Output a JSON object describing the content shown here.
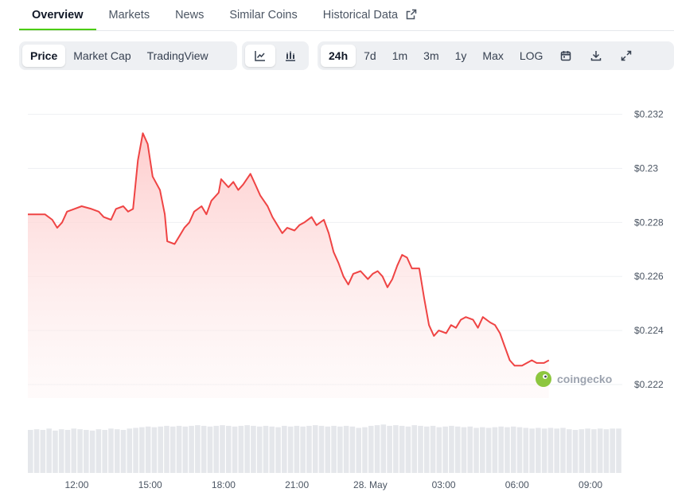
{
  "tabs": [
    {
      "label": "Overview",
      "active": true
    },
    {
      "label": "Markets",
      "active": false
    },
    {
      "label": "News",
      "active": false
    },
    {
      "label": "Similar Coins",
      "active": false
    },
    {
      "label": "Historical Data",
      "active": false
    }
  ],
  "toolbar": {
    "chart_modes": [
      "Price",
      "Market Cap",
      "TradingView"
    ],
    "active_mode": "Price",
    "chart_styles": [
      "line-chart-icon",
      "candlestick-icon"
    ],
    "active_style": "line-chart-icon",
    "ranges": [
      "24h",
      "7d",
      "1m",
      "3m",
      "1y",
      "Max",
      "LOG"
    ],
    "active_range": "24h",
    "actions": [
      "calendar-icon",
      "download-icon",
      "fullscreen-icon"
    ]
  },
  "watermark": "coingecko",
  "colors": {
    "line": "#ef4444",
    "area_top": "#fecaca",
    "volume": "#e5e7eb",
    "accent": "#4bcc00"
  },
  "chart_data": {
    "type": "area",
    "yprefix": "$",
    "ylim": [
      0.2215,
      0.2324
    ],
    "yticks": [
      "0.222",
      "0.224",
      "0.226",
      "0.228",
      "0.23",
      "0.232"
    ],
    "xlim": [
      10,
      34.3
    ],
    "xticks": [
      {
        "h": 12,
        "label": "12:00"
      },
      {
        "h": 15,
        "label": "15:00"
      },
      {
        "h": 18,
        "label": "18:00"
      },
      {
        "h": 21,
        "label": "21:00"
      },
      {
        "h": 24,
        "label": "28. May"
      },
      {
        "h": 27,
        "label": "03:00"
      },
      {
        "h": 30,
        "label": "06:00"
      },
      {
        "h": 33,
        "label": "09:00"
      }
    ],
    "grid": true,
    "legend": "none",
    "price": [
      [
        10.0,
        0.2283
      ],
      [
        10.4,
        0.2283
      ],
      [
        10.7,
        0.2283
      ],
      [
        11.0,
        0.2281
      ],
      [
        11.2,
        0.2278
      ],
      [
        11.4,
        0.228
      ],
      [
        11.6,
        0.2284
      ],
      [
        11.9,
        0.2285
      ],
      [
        12.2,
        0.2286
      ],
      [
        12.6,
        0.2285
      ],
      [
        12.9,
        0.2284
      ],
      [
        13.1,
        0.2282
      ],
      [
        13.4,
        0.2281
      ],
      [
        13.6,
        0.2285
      ],
      [
        13.9,
        0.2286
      ],
      [
        14.1,
        0.2284
      ],
      [
        14.3,
        0.2285
      ],
      [
        14.5,
        0.2303
      ],
      [
        14.7,
        0.2313
      ],
      [
        14.9,
        0.2309
      ],
      [
        15.1,
        0.2297
      ],
      [
        15.4,
        0.2292
      ],
      [
        15.6,
        0.2283
      ],
      [
        15.7,
        0.2273
      ],
      [
        16.0,
        0.2272
      ],
      [
        16.2,
        0.2275
      ],
      [
        16.4,
        0.2278
      ],
      [
        16.6,
        0.228
      ],
      [
        16.8,
        0.2284
      ],
      [
        17.1,
        0.2286
      ],
      [
        17.3,
        0.2283
      ],
      [
        17.5,
        0.2288
      ],
      [
        17.8,
        0.2291
      ],
      [
        17.9,
        0.2296
      ],
      [
        18.2,
        0.2293
      ],
      [
        18.4,
        0.2295
      ],
      [
        18.6,
        0.2292
      ],
      [
        18.8,
        0.2294
      ],
      [
        19.1,
        0.2298
      ],
      [
        19.3,
        0.2294
      ],
      [
        19.5,
        0.229
      ],
      [
        19.8,
        0.2286
      ],
      [
        20.0,
        0.2282
      ],
      [
        20.2,
        0.2279
      ],
      [
        20.4,
        0.2276
      ],
      [
        20.6,
        0.2278
      ],
      [
        20.9,
        0.2277
      ],
      [
        21.1,
        0.2279
      ],
      [
        21.3,
        0.228
      ],
      [
        21.6,
        0.2282
      ],
      [
        21.8,
        0.2279
      ],
      [
        22.1,
        0.2281
      ],
      [
        22.3,
        0.2276
      ],
      [
        22.5,
        0.2269
      ],
      [
        22.7,
        0.2265
      ],
      [
        22.9,
        0.226
      ],
      [
        23.1,
        0.2257
      ],
      [
        23.3,
        0.2261
      ],
      [
        23.6,
        0.2262
      ],
      [
        23.9,
        0.2259
      ],
      [
        24.1,
        0.2261
      ],
      [
        24.3,
        0.2262
      ],
      [
        24.5,
        0.226
      ],
      [
        24.7,
        0.2256
      ],
      [
        24.9,
        0.2259
      ],
      [
        25.1,
        0.2264
      ],
      [
        25.3,
        0.2268
      ],
      [
        25.5,
        0.2267
      ],
      [
        25.7,
        0.2263
      ],
      [
        26.0,
        0.2263
      ],
      [
        26.2,
        0.2252
      ],
      [
        26.4,
        0.2242
      ],
      [
        26.6,
        0.2238
      ],
      [
        26.8,
        0.224
      ],
      [
        27.1,
        0.2239
      ],
      [
        27.3,
        0.2242
      ],
      [
        27.5,
        0.2241
      ],
      [
        27.7,
        0.2244
      ],
      [
        27.9,
        0.2245
      ],
      [
        28.2,
        0.2244
      ],
      [
        28.4,
        0.2241
      ],
      [
        28.6,
        0.2245
      ],
      [
        28.9,
        0.2243
      ],
      [
        29.1,
        0.2242
      ],
      [
        29.3,
        0.2239
      ],
      [
        29.5,
        0.2234
      ],
      [
        29.7,
        0.2229
      ],
      [
        29.9,
        0.2227
      ],
      [
        30.2,
        0.2227
      ],
      [
        30.4,
        0.2228
      ],
      [
        30.6,
        0.2229
      ],
      [
        30.8,
        0.2228
      ],
      [
        31.1,
        0.2228
      ],
      [
        31.3,
        0.2229
      ]
    ],
    "volume": [
      0.64,
      0.65,
      0.64,
      0.66,
      0.63,
      0.65,
      0.64,
      0.66,
      0.65,
      0.64,
      0.63,
      0.65,
      0.64,
      0.66,
      0.65,
      0.64,
      0.66,
      0.67,
      0.68,
      0.69,
      0.68,
      0.69,
      0.7,
      0.69,
      0.7,
      0.69,
      0.7,
      0.71,
      0.7,
      0.69,
      0.7,
      0.71,
      0.7,
      0.69,
      0.7,
      0.71,
      0.7,
      0.69,
      0.7,
      0.69,
      0.68,
      0.7,
      0.69,
      0.7,
      0.69,
      0.7,
      0.71,
      0.7,
      0.69,
      0.7,
      0.69,
      0.7,
      0.69,
      0.67,
      0.68,
      0.7,
      0.71,
      0.72,
      0.7,
      0.71,
      0.7,
      0.69,
      0.71,
      0.7,
      0.69,
      0.7,
      0.68,
      0.69,
      0.7,
      0.69,
      0.68,
      0.69,
      0.67,
      0.68,
      0.67,
      0.68,
      0.69,
      0.68,
      0.69,
      0.68,
      0.67,
      0.66,
      0.67,
      0.66,
      0.67,
      0.66,
      0.67,
      0.65,
      0.64,
      0.65,
      0.66,
      0.65,
      0.66,
      0.65,
      0.66,
      0.66
    ]
  }
}
